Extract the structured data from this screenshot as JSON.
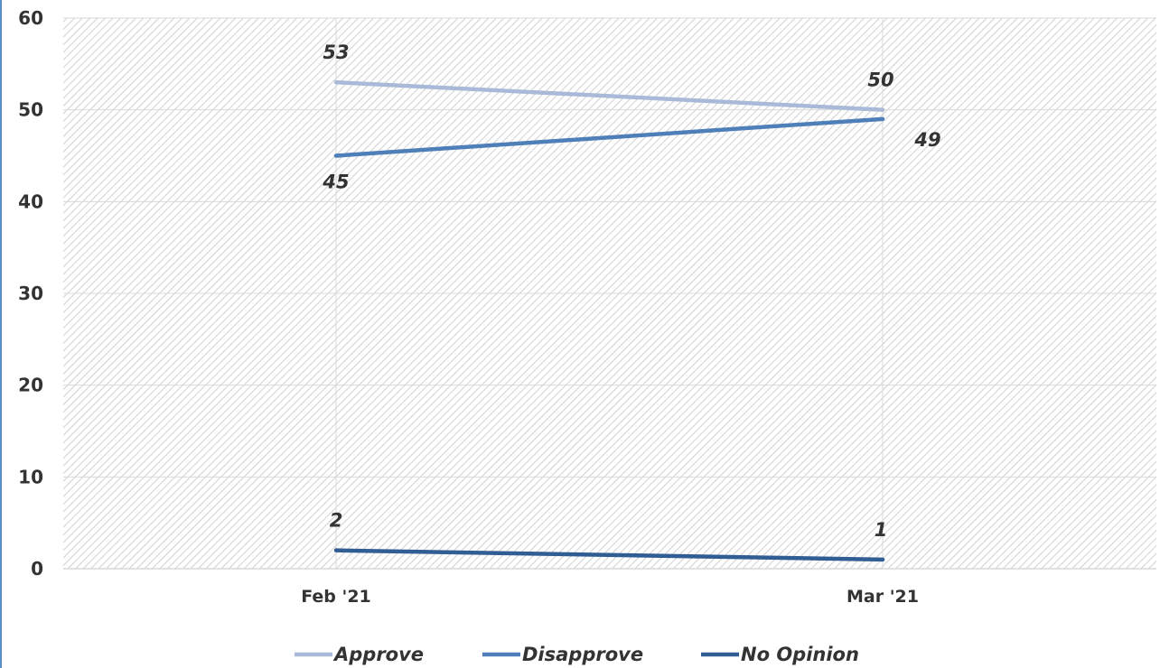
{
  "chart_data": {
    "type": "line",
    "categories": [
      "Feb '21",
      "Mar '21"
    ],
    "ylim": [
      0,
      60
    ],
    "yticks": [
      0,
      10,
      20,
      30,
      40,
      50,
      60
    ],
    "grid": true,
    "legend_position": "bottom",
    "series": [
      {
        "name": "Approve",
        "values": [
          53,
          50
        ],
        "color": "#a9bad9"
      },
      {
        "name": "Disapprove",
        "values": [
          45,
          49
        ],
        "color": "#4f7fb9"
      },
      {
        "name": "No Opinion",
        "values": [
          2,
          1
        ],
        "color": "#2f5d94"
      }
    ],
    "data_labels": [
      [
        "53",
        "50"
      ],
      [
        "45",
        "49"
      ],
      [
        "2",
        "1"
      ]
    ]
  }
}
